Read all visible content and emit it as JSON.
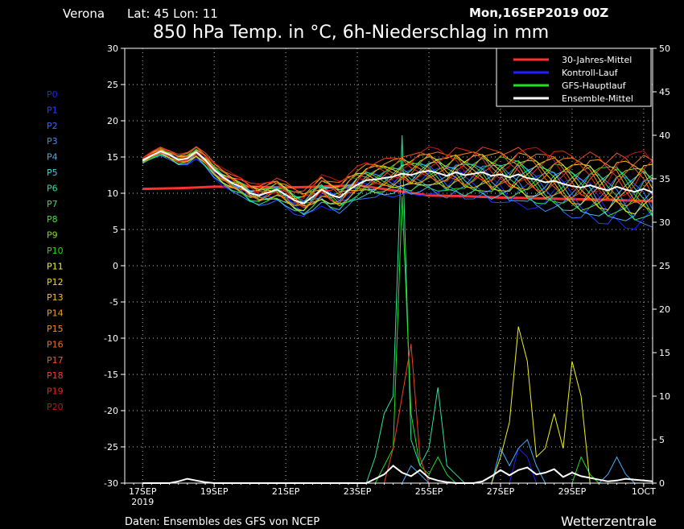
{
  "header": {
    "location": "Verona",
    "coords": "Lat: 45 Lon: 11",
    "run_date": "Mon,16SEP2019 00Z",
    "title": "850 hPa Temp. in °C, 6h-Niederschlag in mm"
  },
  "footer": {
    "source": "Daten: Ensembles des GFS von NCEP",
    "brand": "Wetterzentrale"
  },
  "colors": {
    "background": "#000000",
    "frame": "#ffffff",
    "grid": "#bbbbbb",
    "climate": "#ff3030",
    "control": "#2020ff",
    "gfs": "#20e020",
    "mean": "#ffffff"
  },
  "members": [
    {
      "name": "P0",
      "color": "#2020ff"
    },
    {
      "name": "P1",
      "color": "#2a40ff"
    },
    {
      "name": "P2",
      "color": "#2f6bff"
    },
    {
      "name": "P3",
      "color": "#3a8fff"
    },
    {
      "name": "P4",
      "color": "#40b0ff"
    },
    {
      "name": "P5",
      "color": "#40d0f0"
    },
    {
      "name": "P6",
      "color": "#30e0a0"
    },
    {
      "name": "P7",
      "color": "#30e060"
    },
    {
      "name": "P8",
      "color": "#40e030"
    },
    {
      "name": "P9",
      "color": "#80e020"
    },
    {
      "name": "P10",
      "color": "#20e020"
    },
    {
      "name": "P11",
      "color": "#f0f020"
    },
    {
      "name": "P12",
      "color": "#f0d820"
    },
    {
      "name": "P13",
      "color": "#f0c020"
    },
    {
      "name": "P14",
      "color": "#f0a020"
    },
    {
      "name": "P15",
      "color": "#f08a20"
    },
    {
      "name": "P16",
      "color": "#f07020"
    },
    {
      "name": "P17",
      "color": "#f05a20"
    },
    {
      "name": "P18",
      "color": "#f04020"
    },
    {
      "name": "P19",
      "color": "#e82818"
    },
    {
      "name": "P20",
      "color": "#d01010"
    }
  ],
  "chart_data": {
    "type": "line",
    "title": "850 hPa Temp. in °C, 6h-Niederschlag in mm",
    "x_range_days": [
      16.5,
      31.25
    ],
    "x_ticks": [
      {
        "day": 17,
        "label": "17SEP",
        "sub": "2019"
      },
      {
        "day": 19,
        "label": "19SEP",
        "sub": ""
      },
      {
        "day": 21,
        "label": "21SEP",
        "sub": ""
      },
      {
        "day": 23,
        "label": "23SEP",
        "sub": ""
      },
      {
        "day": 25,
        "label": "25SEP",
        "sub": ""
      },
      {
        "day": 27,
        "label": "27SEP",
        "sub": ""
      },
      {
        "day": 29,
        "label": "29SEP",
        "sub": ""
      },
      {
        "day": 31,
        "label": "1OCT",
        "sub": ""
      }
    ],
    "y_left": {
      "min": -30,
      "max": 30,
      "ticks": [
        30,
        25,
        20,
        15,
        10,
        5,
        0,
        -5,
        -10,
        -15,
        -20,
        -25,
        -30
      ]
    },
    "y_right": {
      "min": 0,
      "max": 50,
      "ticks": [
        50,
        45,
        40,
        35,
        30,
        25,
        20,
        15,
        10,
        5,
        0
      ]
    },
    "grid": true,
    "legend": {
      "position": "top-right",
      "entries": [
        {
          "label": "30-Jahres-Mittel",
          "color": "#ff3030"
        },
        {
          "label": "Kontroll-Lauf",
          "color": "#2020ff"
        },
        {
          "label": "GFS-Hauptlauf",
          "color": "#20e020"
        },
        {
          "label": "Ensemble-Mittel",
          "color": "#ffffff"
        }
      ]
    },
    "temp_x_start_day": 17,
    "temp_step_days": 0.25,
    "climate_mean": {
      "name": "30-Jahres-Mittel",
      "x": [
        17,
        18,
        19,
        20,
        21,
        22,
        23,
        24,
        25,
        26,
        27,
        28,
        29,
        30,
        31.25
      ],
      "y": [
        10.6,
        10.7,
        10.9,
        10.9,
        10.8,
        10.9,
        11.1,
        10.4,
        9.7,
        9.6,
        9.4,
        9.3,
        9.2,
        9.1,
        8.9
      ]
    },
    "ensemble_mean_temp": [
      14.5,
      15.2,
      15.8,
      15.3,
      14.6,
      14.8,
      15.7,
      14.6,
      13.2,
      12.2,
      11.4,
      10.9,
      10.0,
      9.7,
      10.1,
      10.5,
      9.8,
      9.0,
      8.6,
      9.5,
      10.5,
      9.8,
      9.4,
      10.4,
      11.2,
      11.8,
      11.9,
      12.1,
      12.3,
      12.7,
      12.5,
      12.9,
      13.1,
      12.8,
      12.4,
      12.9,
      12.5,
      12.7,
      12.9,
      12.4,
      12.6,
      12.2,
      12.6,
      12.1,
      11.9,
      11.5,
      11.7,
      11.3,
      11.0,
      10.8,
      11.1,
      10.7,
      10.4,
      10.9,
      10.5,
      10.2,
      10.6,
      10.1
    ],
    "precip_x_start_day": 17,
    "precip_step_days": 0.25,
    "precip_mean": [
      0,
      0,
      0,
      0,
      0.2,
      0.5,
      0.3,
      0.1,
      0,
      0,
      0,
      0,
      0,
      0,
      0,
      0,
      0,
      0,
      0,
      0,
      0,
      0,
      0,
      0,
      0,
      0,
      0.5,
      1.0,
      2.0,
      1.2,
      0.8,
      1.5,
      0.6,
      0.3,
      0.1,
      0,
      0,
      0,
      0.2,
      0.8,
      1.5,
      0.9,
      1.5,
      1.8,
      1.0,
      1.2,
      1.6,
      0.7,
      1.2,
      0.8,
      0.6,
      0.4,
      0.2,
      0.3,
      0.5,
      0.4,
      0.3,
      0.2
    ],
    "precip_members": [
      {
        "member": "P0",
        "values": [
          0,
          0,
          0,
          0,
          0,
          0,
          0,
          0,
          0,
          0,
          0,
          0,
          0,
          0,
          0,
          0,
          0,
          0,
          0,
          0,
          0,
          0,
          0,
          0,
          0,
          0,
          0,
          0,
          0,
          0,
          0,
          0,
          0,
          0,
          0,
          0,
          0,
          0,
          0,
          0,
          0,
          0,
          4.0,
          3.0,
          0,
          0,
          0,
          0,
          0,
          0,
          0,
          0,
          0,
          0,
          0,
          0,
          0,
          0
        ]
      },
      {
        "member": "P4",
        "values": [
          0,
          0,
          0,
          0,
          0,
          0,
          0,
          0,
          0,
          0,
          0,
          0,
          0,
          0,
          0,
          0,
          0,
          0,
          0,
          0,
          0,
          0,
          0,
          0,
          0,
          0,
          0,
          0,
          0,
          0,
          2.0,
          1.0,
          0,
          0,
          0,
          0,
          0,
          0,
          0,
          0,
          4.0,
          2.0,
          4.0,
          5.0,
          2.0,
          0,
          0,
          0,
          0,
          0,
          0,
          0,
          1.0,
          3.0,
          1.0,
          0,
          0,
          0
        ]
      },
      {
        "member": "P6",
        "values": [
          0,
          0,
          0,
          0,
          0,
          0,
          0,
          0,
          0,
          0,
          0,
          0,
          0,
          0,
          0,
          0,
          0,
          0,
          0,
          0,
          0,
          0,
          0,
          0,
          0,
          0,
          3.0,
          8.0,
          10.0,
          40.0,
          5.0,
          2.0,
          4.0,
          11.0,
          2.0,
          1.0,
          0,
          0,
          0,
          0,
          0,
          0,
          0,
          0,
          0,
          0,
          0,
          0,
          0,
          0,
          0,
          0,
          0,
          0,
          0,
          0,
          0,
          0
        ]
      },
      {
        "member": "P10",
        "values": [
          0,
          0,
          0,
          0,
          0,
          0,
          0,
          0,
          0,
          0,
          0,
          0,
          0,
          0,
          0,
          0,
          0,
          0,
          0,
          0,
          0,
          0,
          0,
          0,
          0,
          0,
          0,
          2.0,
          4.0,
          33.0,
          8.0,
          2.0,
          1.0,
          3.0,
          1.0,
          0,
          0,
          0,
          0,
          0,
          0,
          0,
          0,
          0,
          0,
          0,
          0,
          0,
          0,
          3.0,
          1.0,
          0,
          0,
          0,
          0,
          0,
          0,
          0
        ]
      },
      {
        "member": "P11",
        "values": [
          0,
          0,
          0,
          0,
          0,
          0,
          0,
          0,
          0,
          0,
          0,
          0,
          0,
          0,
          0,
          0,
          0,
          0,
          0,
          0,
          0,
          0,
          0,
          0,
          0,
          0,
          0,
          0,
          0,
          0,
          0,
          0,
          0,
          0,
          0,
          0,
          0,
          0,
          0,
          0,
          3.0,
          7.0,
          18.0,
          14.0,
          3.0,
          4.0,
          8.0,
          4.0,
          14.0,
          10.0,
          0,
          0,
          0,
          0,
          0,
          0,
          0,
          0
        ]
      },
      {
        "member": "P18",
        "values": [
          0,
          0,
          0,
          0,
          0,
          0,
          0,
          0,
          0,
          0,
          0,
          0,
          0,
          0,
          0,
          0,
          0,
          0,
          0,
          0,
          0,
          0,
          0,
          0,
          0,
          0,
          0,
          0,
          4.0,
          10.0,
          16.0,
          3.0,
          0,
          0,
          0,
          0,
          0,
          0,
          0,
          0,
          0,
          0,
          0,
          0,
          0,
          0,
          0,
          0,
          0,
          0,
          0,
          0,
          0,
          0,
          0,
          0,
          0,
          0
        ]
      }
    ]
  }
}
